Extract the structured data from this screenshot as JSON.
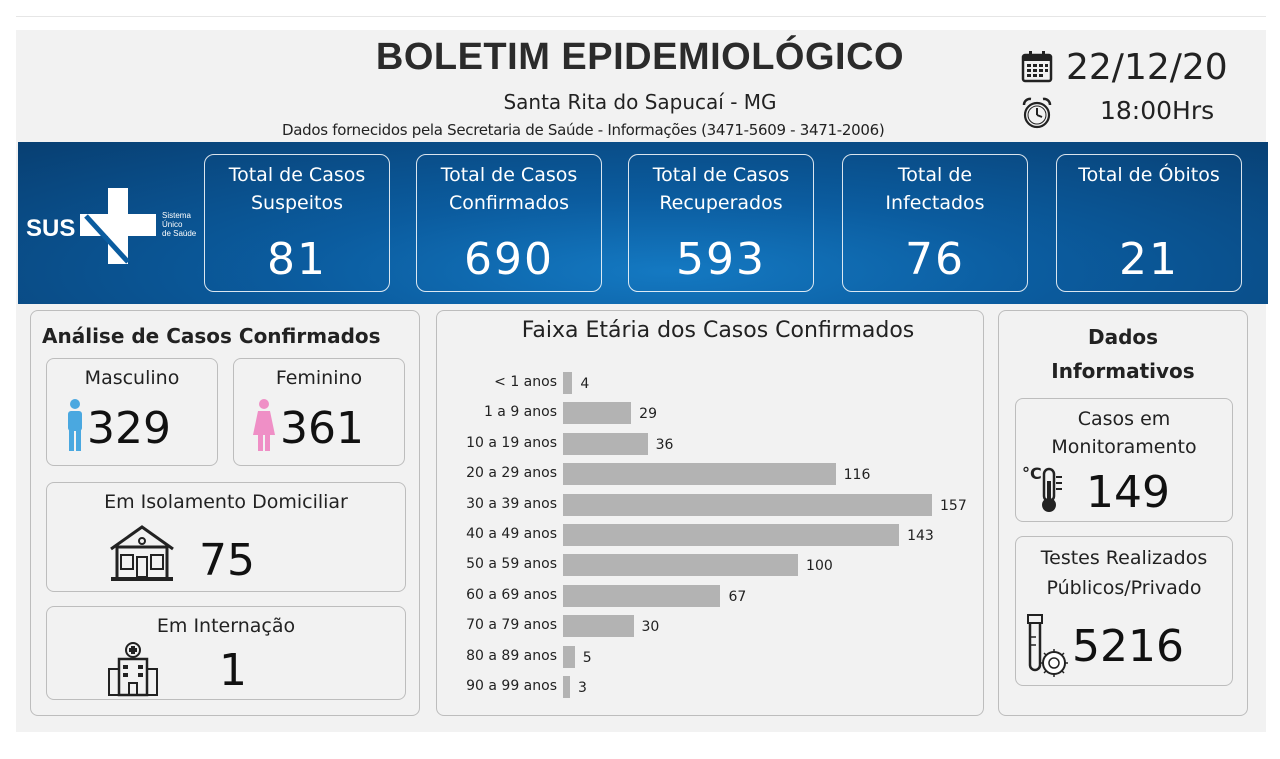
{
  "header": {
    "title": "BOLETIM EPIDEMIOLÓGICO",
    "location": "Santa Rita do Sapucaí - MG",
    "source": "Dados fornecidos pela Secretaria de Saúde - Informações (3471-5609 - 3471-2006)",
    "date": "22/12/20",
    "time": "18:00Hrs"
  },
  "sus": {
    "brand": "SUS",
    "line1": "Sistema",
    "line2": "Único",
    "line3": "de Saúde"
  },
  "stats": [
    {
      "label_line1": "Total de Casos",
      "label_line2": "Suspeitos",
      "value": "81"
    },
    {
      "label_line1": "Total de Casos",
      "label_line2": "Confirmados",
      "value": "690"
    },
    {
      "label_line1": "Total de Casos",
      "label_line2": "Recuperados",
      "value": "593"
    },
    {
      "label_line1": "Total de",
      "label_line2": "Infectados",
      "value": "76"
    },
    {
      "label_line1": "Total de Óbitos",
      "label_line2": "",
      "value": "21"
    }
  ],
  "analysis": {
    "title": "Análise de Casos Confirmados",
    "male_label": "Masculino",
    "male_value": "329",
    "female_label": "Feminino",
    "female_value": "361",
    "isolation_label": "Em Isolamento Domiciliar",
    "isolation_value": "75",
    "hospital_label": "Em Internação",
    "hospital_value": "1"
  },
  "info": {
    "title_line1": "Dados",
    "title_line2": "Informativos",
    "monitor_line1": "Casos em",
    "monitor_line2": "Monitoramento",
    "monitor_value": "149",
    "tests_line1": "Testes Realizados",
    "tests_line2": "Públicos/Privado",
    "tests_value": "5216"
  },
  "colors": {
    "banner": "#0b5c9f",
    "male": "#4aa8e0",
    "female": "#ef8fc6",
    "bar": "#b3b3b3"
  },
  "chart_data": {
    "type": "bar",
    "orientation": "horizontal",
    "title": "Faixa Etária dos Casos Confirmados",
    "categories": [
      "< 1 anos",
      "1 a 9 anos",
      "10 a 19 anos",
      "20 a 29 anos",
      "30 a 39 anos",
      "40 a 49 anos",
      "50 a 59 anos",
      "60 a 69 anos",
      "70 a 79 anos",
      "80 a 89 anos",
      "90 a 99 anos"
    ],
    "values": [
      4,
      29,
      36,
      116,
      157,
      143,
      100,
      67,
      30,
      5,
      3
    ],
    "xlim": [
      0,
      157
    ],
    "grid": false,
    "legend": "none"
  }
}
